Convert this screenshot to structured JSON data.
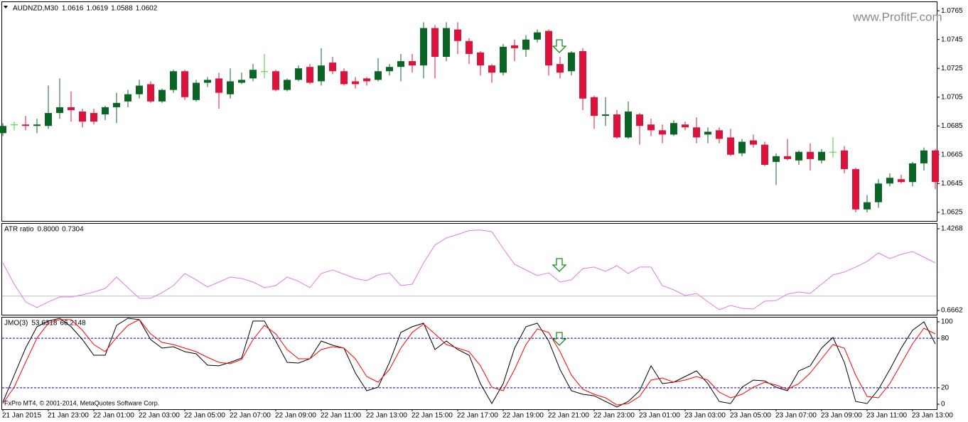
{
  "chart_data": [
    {
      "type": "candlestick",
      "title": "AUDNZD,M30",
      "header_values": [
        1.0616,
        1.0619,
        1.0588,
        1.0602
      ],
      "open": [
        1.068,
        1.0686,
        1.0686,
        1.0685,
        1.0685,
        1.0694,
        1.0698,
        1.0695,
        1.0694,
        1.0693,
        1.0698,
        1.0702,
        1.0707,
        1.0714,
        1.0702,
        1.071,
        1.0723,
        1.0703,
        1.0715,
        1.0718,
        1.0707,
        1.0715,
        1.0718,
        1.0723,
        1.0723,
        1.071,
        1.0717,
        1.0726,
        1.0716,
        1.0729,
        1.0723,
        1.0716,
        1.0718,
        1.0717,
        1.0723,
        1.0726,
        1.073,
        1.0727,
        1.0753,
        1.0733,
        1.0752,
        1.0744,
        1.0736,
        1.0727,
        1.0722,
        1.0741,
        1.0738,
        1.0745,
        1.0751,
        1.0728,
        1.0723,
        1.0737,
        1.0705,
        1.0692,
        1.0693,
        1.0677,
        1.0693,
        1.0686,
        1.0682,
        1.0679,
        1.0686,
        1.0684,
        1.0679,
        1.0682,
        1.0677,
        1.0666,
        1.0675,
        1.0672,
        1.066,
        1.0664,
        1.0661,
        1.0667,
        1.0661,
        1.0667,
        1.0668,
        1.0655,
        1.0627,
        1.0632,
        1.0645,
        1.0648,
        1.0646,
        1.0659,
        1.0668
      ],
      "high": [
        1.0687,
        1.0688,
        1.0692,
        1.069,
        1.0713,
        1.0718,
        1.0709,
        1.0697,
        1.0697,
        1.0699,
        1.0708,
        1.071,
        1.0717,
        1.0716,
        1.0711,
        1.0724,
        1.0724,
        1.0717,
        1.0719,
        1.0722,
        1.0725,
        1.0722,
        1.0728,
        1.0735,
        1.0724,
        1.0718,
        1.0727,
        1.0728,
        1.0739,
        1.0733,
        1.0725,
        1.0719,
        1.0719,
        1.0732,
        1.0728,
        1.0735,
        1.0735,
        1.0757,
        1.0755,
        1.0757,
        1.0757,
        1.0746,
        1.0737,
        1.0728,
        1.0742,
        1.0745,
        1.0748,
        1.0752,
        1.0752,
        1.0733,
        1.0737,
        1.0739,
        1.0706,
        1.0705,
        1.0696,
        1.0702,
        1.0694,
        1.069,
        1.0686,
        1.0689,
        1.0688,
        1.0691,
        1.0684,
        1.0684,
        1.0683,
        1.0676,
        1.0679,
        1.0674,
        1.0666,
        1.0676,
        1.0668,
        1.0673,
        1.0669,
        1.0677,
        1.0671,
        1.0656,
        1.0637,
        1.0648,
        1.0652,
        1.0651,
        1.066,
        1.067,
        1.0669
      ],
      "low": [
        1.0678,
        1.0682,
        1.0682,
        1.068,
        1.0683,
        1.069,
        1.0688,
        1.0684,
        1.0686,
        1.0689,
        1.0687,
        1.0698,
        1.0704,
        1.0701,
        1.0701,
        1.0708,
        1.0703,
        1.0702,
        1.0712,
        1.0697,
        1.0704,
        1.0714,
        1.0716,
        1.0718,
        1.0709,
        1.0709,
        1.0716,
        1.0714,
        1.0713,
        1.0721,
        1.0713,
        1.0711,
        1.0713,
        1.0716,
        1.072,
        1.0716,
        1.0722,
        1.0718,
        1.0718,
        1.073,
        1.0735,
        1.0728,
        1.072,
        1.0715,
        1.072,
        1.073,
        1.0733,
        1.0743,
        1.072,
        1.0718,
        1.072,
        1.0696,
        1.0683,
        1.0685,
        1.0676,
        1.0676,
        1.0672,
        1.0678,
        1.0673,
        1.0678,
        1.0682,
        1.0673,
        1.0673,
        1.0673,
        1.0664,
        1.0664,
        1.067,
        1.0657,
        1.0644,
        1.0661,
        1.0658,
        1.0654,
        1.0659,
        1.0663,
        1.0652,
        1.0625,
        1.0625,
        1.0628,
        1.0643,
        1.0645,
        1.0643,
        1.0654,
        1.0641
      ],
      "close": [
        1.0685,
        1.0686,
        1.0685,
        1.0686,
        1.0694,
        1.0698,
        1.0696,
        1.0688,
        1.0688,
        1.0698,
        1.0701,
        1.0707,
        1.0713,
        1.0702,
        1.071,
        1.0723,
        1.0705,
        1.0715,
        1.0717,
        1.0708,
        1.0716,
        1.0717,
        1.0724,
        1.0723,
        1.071,
        1.0717,
        1.0725,
        1.0715,
        1.0727,
        1.0723,
        1.0714,
        1.0714,
        1.0716,
        1.0723,
        1.0726,
        1.073,
        1.0727,
        1.0753,
        1.0733,
        1.0753,
        1.0744,
        1.0735,
        1.0727,
        1.0722,
        1.074,
        1.0739,
        1.0745,
        1.075,
        1.0727,
        1.0722,
        1.0736,
        1.0704,
        1.0692,
        1.0693,
        1.0677,
        1.0695,
        1.0685,
        1.0682,
        1.0679,
        1.0687,
        1.0684,
        1.0677,
        1.0681,
        1.0676,
        1.0665,
        1.0674,
        1.0672,
        1.0658,
        1.0664,
        1.0662,
        1.0667,
        1.0662,
        1.0667,
        1.0667,
        1.0655,
        1.0627,
        1.0632,
        1.0645,
        1.0649,
        1.0646,
        1.0659,
        1.0668,
        1.0646
      ],
      "up_color": "#0b6623",
      "down_color": "#dc143c",
      "doji_color": "#3cd23c",
      "ylim": [
        1.0619,
        1.0771
      ],
      "yticks": [
        1.0765,
        1.0745,
        1.0725,
        1.0705,
        1.0685,
        1.0665,
        1.0645,
        1.0625
      ],
      "watermark": "www.ProfitF.com"
    },
    {
      "type": "line",
      "title": "ATR ratio",
      "header_values": [
        {
          "value": 0.8,
          "label": "0.8000"
        },
        0.7304
      ],
      "series": [
        {
          "color": "#e07be0",
          "values": [
            1.109,
            0.911,
            0.746,
            0.693,
            0.746,
            0.792,
            0.792,
            0.812,
            0.838,
            0.871,
            0.977,
            0.878,
            0.779,
            0.779,
            0.832,
            0.898,
            1.01,
            0.951,
            0.885,
            0.931,
            0.977,
            0.964,
            0.931,
            0.878,
            0.898,
            0.977,
            0.938,
            0.878,
            1.01,
            1.043,
            1.004,
            0.964,
            0.944,
            0.997,
            1.017,
            0.898,
            0.911,
            1.109,
            1.275,
            1.341,
            1.374,
            1.41,
            1.415,
            1.4,
            1.242,
            1.096,
            1.043,
            0.99,
            1.017,
            0.931,
            0.951,
            1.056,
            1.07,
            1.03,
            1.083,
            1.01,
            1.07,
            1.07,
            0.898,
            0.858,
            0.805,
            0.825,
            0.746,
            0.673,
            0.713,
            0.686,
            0.68,
            0.752,
            0.759,
            0.819,
            0.838,
            0.825,
            0.911,
            0.997,
            1.024,
            1.07,
            1.123,
            1.202,
            1.149,
            1.189,
            1.215,
            1.162,
            1.109
          ]
        }
      ],
      "ylim": [
        0.6265,
        1.4797
      ],
      "yticks": [
        1.4268,
        0.6662
      ],
      "level_color": "#c0c0c0"
    },
    {
      "type": "line",
      "title": "JMO(3)",
      "header_values": [
        53.6318,
        66.2148
      ],
      "series": [
        {
          "color": "#000000",
          "values": [
            2.6,
            35.3,
            68.1,
            94.0,
            100.9,
            104.3,
            94.0,
            78.4,
            59.5,
            59.5,
            95.7,
            104.3,
            102.6,
            78.4,
            68.1,
            69.8,
            63.8,
            61.2,
            47.4,
            46.6,
            50.9,
            56.0,
            100.9,
            100.9,
            76.7,
            50.9,
            50.0,
            55.2,
            76.7,
            71.6,
            68.1,
            37.9,
            16.4,
            20.7,
            50.9,
            87.1,
            94.0,
            98.3,
            66.4,
            76.7,
            66.4,
            59.5,
            25.0,
            0.9,
            25.0,
            68.1,
            94.0,
            98.3,
            76.7,
            42.2,
            16.4,
            12.1,
            10.3,
            3.4,
            -3.4,
            3.4,
            16.4,
            46.6,
            25.0,
            26.7,
            33.6,
            40.5,
            25.0,
            3.4,
            0.9,
            20.7,
            29.3,
            28.4,
            20.7,
            16.4,
            40.5,
            46.6,
            68.1,
            81.0,
            50.9,
            3.4,
            0.9,
            18.1,
            42.2,
            68.1,
            89.7,
            100.0,
            73.3
          ]
        },
        {
          "color": "#ff0000",
          "values": [
            0.9,
            20.7,
            50.9,
            80.2,
            98.3,
            102.6,
            102.6,
            89.7,
            72.4,
            63.8,
            81.0,
            95.7,
            102.6,
            85.3,
            75.0,
            72.4,
            68.1,
            63.8,
            56.9,
            50.9,
            49.1,
            54.3,
            78.4,
            95.7,
            85.3,
            66.4,
            55.2,
            55.2,
            66.4,
            69.8,
            68.1,
            55.2,
            33.6,
            26.7,
            42.2,
            68.1,
            87.1,
            97.4,
            85.3,
            72.4,
            68.1,
            63.8,
            46.6,
            20.7,
            16.4,
            42.2,
            72.4,
            91.4,
            87.1,
            63.8,
            35.3,
            18.1,
            12.1,
            7.8,
            -0.9,
            0.9,
            9.5,
            29.3,
            31.9,
            26.7,
            29.3,
            33.6,
            29.3,
            14.7,
            7.8,
            12.1,
            20.7,
            26.7,
            23.3,
            18.1,
            25.0,
            37.9,
            55.2,
            72.4,
            68.1,
            35.3,
            9.5,
            7.8,
            25.0,
            49.1,
            73.3,
            92.2,
            85.3
          ]
        }
      ],
      "ylim": [
        -6,
        106
      ],
      "yticks": [
        100,
        80,
        20,
        0
      ],
      "levels": [
        80,
        20
      ],
      "level_color": "#0000cd",
      "categories": [
        "21 Jan 2015",
        null,
        null,
        null,
        "21 Jan 23:00",
        null,
        null,
        null,
        "22 Jan 01:00",
        null,
        null,
        null,
        "22 Jan 03:00",
        null,
        null,
        null,
        "22 Jan 05:00",
        null,
        null,
        null,
        "22 Jan 07:00",
        null,
        null,
        null,
        "22 Jan 09:00",
        null,
        null,
        null,
        "22 Jan 11:00",
        null,
        null,
        null,
        "22 Jan 13:00",
        null,
        null,
        null,
        "22 Jan 15:00",
        null,
        null,
        null,
        "22 Jan 17:00",
        null,
        null,
        null,
        "22 Jan 19:00",
        null,
        null,
        null,
        "22 Jan 21:00",
        null,
        null,
        null,
        "22 Jan 23:00",
        null,
        null,
        null,
        "23 Jan 01:00",
        null,
        null,
        null,
        "23 Jan 03:00",
        null,
        null,
        null,
        "23 Jan 05:00",
        null,
        null,
        null,
        "23 Jan 07:00",
        null,
        null,
        null,
        "23 Jan 09:00",
        null,
        null,
        null,
        "23 Jan 11:00",
        null,
        null,
        null,
        "23 Jan 13:00",
        null,
        null
      ],
      "copyright": "FxPro MT4, © 2001-2014, MetaQuotes Software Corp."
    }
  ]
}
